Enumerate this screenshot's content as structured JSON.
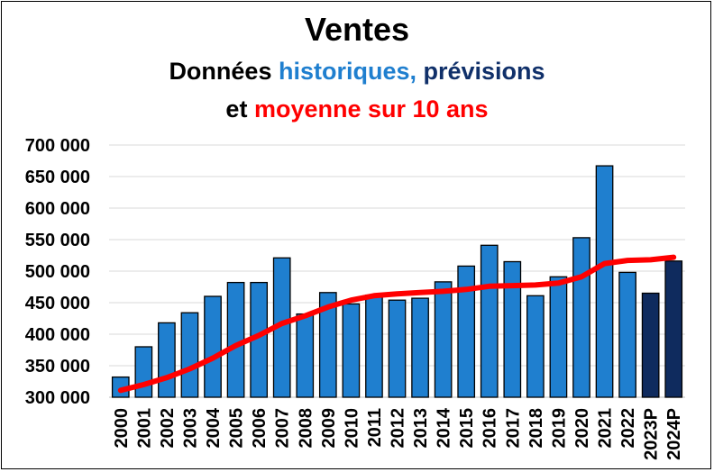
{
  "title": "Ventes",
  "subtitle": {
    "part1": "Données ",
    "part2": "historiques,",
    "part3": " prévisions"
  },
  "subtitle2": {
    "part1": "et ",
    "part2": "moyenne sur 10 ans"
  },
  "colors": {
    "historical": "#1f7fcf",
    "forecast": "#0f2b5e",
    "average_line": "#ff0000",
    "grid": "#d9d9d9"
  },
  "chart_data": {
    "type": "bar",
    "title": "Ventes",
    "categories": [
      "2000",
      "2001",
      "2002",
      "2003",
      "2004",
      "2005",
      "2006",
      "2007",
      "2008",
      "2009",
      "2010",
      "2011",
      "2012",
      "2013",
      "2014",
      "2015",
      "2016",
      "2017",
      "2018",
      "2019",
      "2020",
      "2021",
      "2022",
      "2023P",
      "2024P"
    ],
    "series": [
      {
        "name": "historiques",
        "values": [
          332000,
          380000,
          418000,
          434000,
          460000,
          482000,
          482000,
          521000,
          432000,
          466000,
          448000,
          462000,
          454000,
          457000,
          483000,
          508000,
          541000,
          515000,
          461000,
          491000,
          553000,
          667000,
          498000,
          null,
          null
        ]
      },
      {
        "name": "prévisions",
        "values": [
          null,
          null,
          null,
          null,
          null,
          null,
          null,
          null,
          null,
          null,
          null,
          null,
          null,
          null,
          null,
          null,
          null,
          null,
          null,
          null,
          null,
          null,
          null,
          465000,
          516000
        ]
      },
      {
        "name": "moyenne sur 10 ans",
        "type": "line",
        "values": [
          311000,
          320000,
          331000,
          345000,
          362000,
          382000,
          398000,
          417000,
          429000,
          443000,
          454000,
          461000,
          464000,
          466000,
          468000,
          471000,
          476000,
          477000,
          478000,
          481000,
          491000,
          512000,
          517000,
          518000,
          522000
        ]
      }
    ],
    "yticks": [
      300000,
      350000,
      400000,
      450000,
      500000,
      550000,
      600000,
      650000,
      700000
    ],
    "ytick_labels": [
      "300 000",
      "350 000",
      "400 000",
      "450 000",
      "500 000",
      "550 000",
      "600 000",
      "650 000",
      "700 000"
    ],
    "ylim": [
      300000,
      700000
    ],
    "grid": true,
    "legend": "none"
  }
}
